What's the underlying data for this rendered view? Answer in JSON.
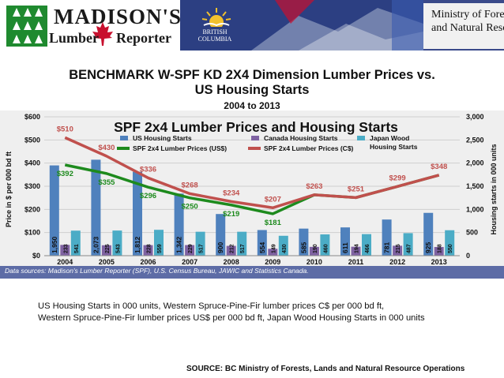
{
  "header": {
    "logo_top": "MADISON'S",
    "logo_word1": "Lumber",
    "logo_word2": "Reporter",
    "bc_text": "BRITISH COLUMBIA",
    "ministry_line1": "Ministry of Forests, Lands",
    "ministry_line2": "and Natural Resource Operations"
  },
  "slide": {
    "title_line1": "BENCHMARK W-SPF KD 2X4 Dimension Lumber Prices vs.",
    "title_line2": "US Housing Starts",
    "years": "2004 to 2013",
    "note_line1": "US Housing Starts in 000 units, Western Spruce-Pine-Fir lumber prices C$ per 000 bd ft,",
    "note_line2": "Western Spruce-Pine-Fir lumber prices US$ per 000 bd ft, Japan Wood Housing Starts in 000 units",
    "source": "SOURCE: BC Ministry of Forests, Lands and Natural Resource Operations"
  },
  "colors": {
    "us_bar": "#4f81bd",
    "canada_bar": "#7f62a2",
    "japan_bar": "#4bacc6",
    "usd_line": "#1d8a1d",
    "cad_line": "#c0504d",
    "strip": "#5d6ca6"
  },
  "chart_data": {
    "type": "bar",
    "title": "SPF 2x4 Lumber Prices and Housing Starts",
    "ylabel": "Price in $ per 000 bd ft",
    "y2label": "Housing starts in 000 units",
    "ylim": [
      0,
      600
    ],
    "y2lim": [
      0,
      3000
    ],
    "y_ticks": [
      "$0",
      "$100",
      "$200",
      "$300",
      "$400",
      "$500",
      "$600"
    ],
    "y2_ticks": [
      "0",
      "500",
      "1,000",
      "1,500",
      "2,000",
      "2,500",
      "3,000"
    ],
    "categories": [
      "2004",
      "2005",
      "2006",
      "2007",
      "2008",
      "2009",
      "2010",
      "2011",
      "2012",
      "2013"
    ],
    "series": [
      {
        "name": "US Housing Starts",
        "axis": "right",
        "kind": "bar",
        "values": [
          1950,
          2073,
          1812,
          1342,
          900,
          554,
          585,
          611,
          781,
          925
        ],
        "labels": [
          "1,950",
          "2,073",
          "1,812",
          "1,342",
          "900",
          "554",
          "585",
          "611",
          "781",
          "925"
        ]
      },
      {
        "name": "Canada Housing Starts",
        "axis": "right",
        "kind": "bar",
        "values": [
          233,
          225,
          228,
          229,
          212,
          149,
          190,
          194,
          215,
          188
        ],
        "labels": [
          "233",
          "225",
          "228",
          "229",
          "212",
          "149",
          "190",
          "194",
          "215",
          "188"
        ]
      },
      {
        "name": "Japan Wood Housing Starts",
        "axis": "right",
        "kind": "bar",
        "values": [
          541,
          543,
          559,
          517,
          517,
          430,
          460,
          466,
          487,
          550
        ],
        "labels": [
          "541",
          "543",
          "559",
          "517",
          "517",
          "430",
          "460",
          "466",
          "487",
          "550"
        ]
      },
      {
        "name": "SPF 2x4 Lumber Prices (US$)",
        "axis": "left",
        "kind": "line",
        "values": [
          392,
          355,
          296,
          250,
          219,
          181,
          263,
          251,
          299,
          348
        ],
        "labels": [
          "$392",
          "$355",
          "$296",
          "$250",
          "$219",
          "$181",
          "",
          "",
          "",
          ""
        ]
      },
      {
        "name": "SPF 2x4 Lumber Prices (C$)",
        "axis": "left",
        "kind": "line",
        "values": [
          510,
          430,
          336,
          268,
          234,
          207,
          263,
          251,
          299,
          348
        ],
        "labels": [
          "$510",
          "$430",
          "$336",
          "$268",
          "$234",
          "$207",
          "$263",
          "$251",
          "$299",
          "$348"
        ]
      }
    ],
    "legend": "top",
    "data_source": "Data sources:  Madison's Lumber Reporter (SPF), U.S. Census Bureau, JAWIC and Statistics Canada."
  }
}
